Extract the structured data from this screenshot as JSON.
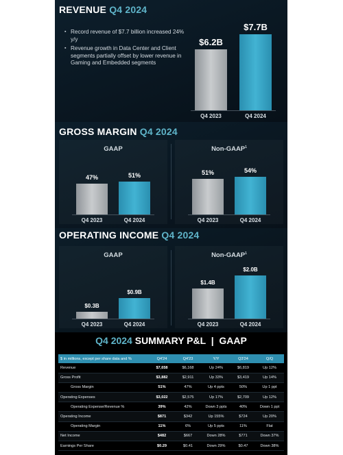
{
  "revenue": {
    "title": "REVENUE",
    "period": "Q4 2024",
    "bullets": [
      "Record revenue of $7.7 billion increased 24% y/y",
      "Revenue growth in Data Center and Client segments partially offset by lower revenue in Gaming and Embedded segments"
    ],
    "chart_data": {
      "type": "bar",
      "categories": [
        "Q4 2023",
        "Q4 2024"
      ],
      "values": [
        6.2,
        7.7
      ],
      "value_labels": [
        "$6.2B",
        "$7.7B"
      ],
      "colors": [
        "#b0b4b7",
        "#3aa7c8"
      ]
    }
  },
  "gross_margin": {
    "title": "GROSS MARGIN",
    "period": "Q4 2024",
    "gaap_label": "GAAP",
    "nongaap_label": "Non-GAAP",
    "footnote_mark": "1",
    "chart_data": [
      {
        "type": "bar",
        "name": "GAAP",
        "categories": [
          "Q4 2023",
          "Q4 2024"
        ],
        "values": [
          47,
          51
        ],
        "value_labels": [
          "47%",
          "51%"
        ]
      },
      {
        "type": "bar",
        "name": "Non-GAAP",
        "categories": [
          "Q4 2023",
          "Q4 2024"
        ],
        "values": [
          51,
          54
        ],
        "value_labels": [
          "51%",
          "54%"
        ]
      }
    ]
  },
  "operating_income": {
    "title": "OPERATING INCOME",
    "period": "Q4 2024",
    "gaap_label": "GAAP",
    "nongaap_label": "Non-GAAP",
    "footnote_mark": "1",
    "chart_data": [
      {
        "type": "bar",
        "name": "GAAP",
        "categories": [
          "Q4 2023",
          "Q4 2024"
        ],
        "values": [
          0.3,
          0.9
        ],
        "value_labels": [
          "$0.3B",
          "$0.9B"
        ]
      },
      {
        "type": "bar",
        "name": "Non-GAAP",
        "categories": [
          "Q4 2023",
          "Q4 2024"
        ],
        "values": [
          1.4,
          2.0
        ],
        "value_labels": [
          "$1.4B",
          "$2.0B"
        ]
      }
    ]
  },
  "summary": {
    "title_period": "Q4 2024",
    "title_rest": "SUMMARY P&L  |  GAAP",
    "columns": [
      "$ in millions, except per share data and %",
      "Q4'24",
      "Q4'23",
      "Y/Y",
      "Q3'24",
      "Q/Q"
    ],
    "rows": [
      {
        "label": "Revenue",
        "indent": false,
        "cells": [
          "$7,658",
          "$6,168",
          "Up 24%",
          "$6,819",
          "Up 12%"
        ]
      },
      {
        "label": "Gross Profit",
        "indent": false,
        "cells": [
          "$3,882",
          "$2,911",
          "Up 33%",
          "$3,419",
          "Up 14%"
        ]
      },
      {
        "label": "Gross Margin",
        "indent": true,
        "cells": [
          "51%",
          "47%",
          "Up 4 ppts",
          "50%",
          "Up 1 ppt"
        ]
      },
      {
        "label": "Operating Expenses",
        "indent": false,
        "cells": [
          "$3,022",
          "$2,575",
          "Up 17%",
          "$2,709",
          "Up 12%"
        ]
      },
      {
        "label": "Operating Expense/Revenue %",
        "indent": true,
        "cells": [
          "39%",
          "42%",
          "Down 3 ppts",
          "40%",
          "Down 1 ppt"
        ]
      },
      {
        "label": "Operating Income",
        "indent": false,
        "cells": [
          "$871",
          "$342",
          "Up 155%",
          "$724",
          "Up 20%"
        ]
      },
      {
        "label": "Operating Margin",
        "indent": true,
        "cells": [
          "11%",
          "6%",
          "Up 5 ppts",
          "11%",
          "Flat"
        ]
      },
      {
        "label": "Net Income",
        "indent": false,
        "cells": [
          "$482",
          "$667",
          "Down 28%",
          "$771",
          "Down 37%"
        ]
      },
      {
        "label": "Earnings Per Share",
        "indent": false,
        "cells": [
          "$0.29",
          "$0.41",
          "Down 29%",
          "$0.47",
          "Down 38%"
        ]
      }
    ]
  }
}
